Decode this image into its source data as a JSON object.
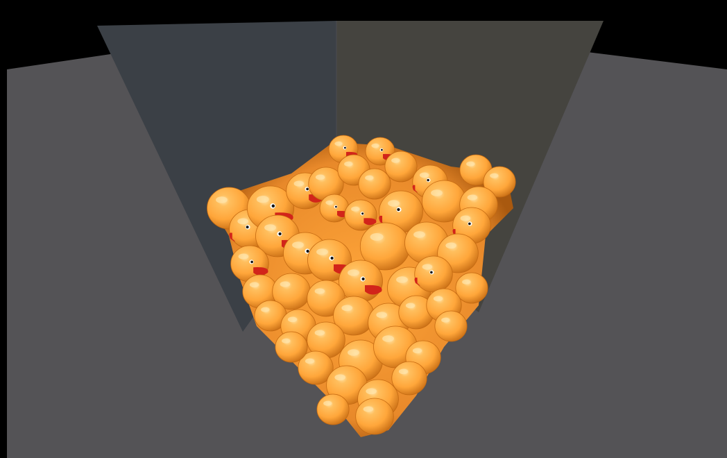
{
  "scene": {
    "description_icon": "rubber-duck-icon",
    "colors": {
      "background": "#000000",
      "floor": "#545356",
      "left_wall": "#3b4046",
      "right_wall": "#45443f",
      "duck_body": "#ffa63a",
      "duck_shadow": "#c46a12",
      "duck_highlight": "#ffe3a8",
      "duck_beak": "#d2241a",
      "duck_eye": "#111111"
    }
  }
}
